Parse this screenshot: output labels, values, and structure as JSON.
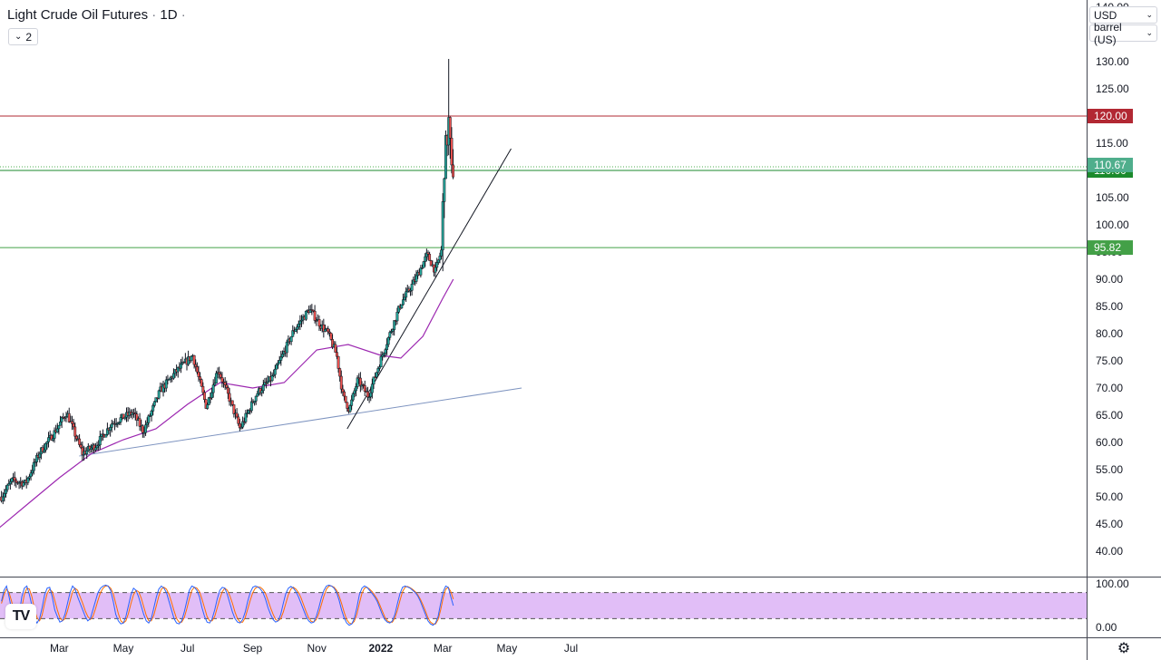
{
  "header": {
    "symbol": "Light Crude Oil Futures",
    "separator1": "·",
    "interval": "1D",
    "separator2": "·",
    "indicator_count": "2"
  },
  "scale_controls": {
    "currency": "USD",
    "unit": "barrel (US)"
  },
  "icons": {
    "indicator_toggle": "chevron-down-icon",
    "logo": "tradingview-logo-icon",
    "settings": "gear-icon"
  },
  "logo_text": "TV",
  "colors": {
    "up_candle": "#26a69a",
    "down_candle": "#ef5350",
    "wick": "#131722",
    "sma": "#9c27b0",
    "resistance": "#b22833",
    "support": "#1b8a2c",
    "support2": "#43a047",
    "last_price": "#4caf50",
    "trend_long": "#7e94c0",
    "trend_short": "#131722",
    "stoch_k": "#2962ff",
    "stoch_d": "#ff6d00",
    "stoch_band": "#e1bef7"
  },
  "chart_data": [
    {
      "type": "candlestick",
      "title": "Light Crude Oil Futures",
      "interval": "1D",
      "currency": "USD",
      "unit": "barrel (US)",
      "ylim": [
        37,
        140
      ],
      "y_ticks": [
        "140.00",
        "130.00",
        "125.00",
        "120.00",
        "115.00",
        "110.00",
        "105.00",
        "100.00",
        "95.00",
        "90.00",
        "85.00",
        "80.00",
        "75.00",
        "70.00",
        "65.00",
        "60.00",
        "55.00",
        "50.00",
        "45.00",
        "40.00"
      ],
      "x_ticks": [
        {
          "label": "Mar",
          "date": "2021-03-01"
        },
        {
          "label": "May",
          "date": "2021-05-01"
        },
        {
          "label": "Jul",
          "date": "2021-07-01"
        },
        {
          "label": "Sep",
          "date": "2021-09-01"
        },
        {
          "label": "Nov",
          "date": "2021-11-01"
        },
        {
          "label": "2022",
          "date": "2022-01-01",
          "bold": true
        },
        {
          "label": "Mar",
          "date": "2022-03-01"
        },
        {
          "label": "May",
          "date": "2022-05-01"
        },
        {
          "label": "Jul",
          "date": "2022-07-01"
        }
      ],
      "price_path": [
        {
          "date": "2021-01-05",
          "price": 50.0
        },
        {
          "date": "2021-01-15",
          "price": 53.0
        },
        {
          "date": "2021-01-28",
          "price": 52.5
        },
        {
          "date": "2021-02-10",
          "price": 58.0
        },
        {
          "date": "2021-02-25",
          "price": 62.0
        },
        {
          "date": "2021-03-08",
          "price": 65.5
        },
        {
          "date": "2021-03-23",
          "price": 58.0
        },
        {
          "date": "2021-04-05",
          "price": 59.5
        },
        {
          "date": "2021-04-20",
          "price": 63.5
        },
        {
          "date": "2021-05-10",
          "price": 65.5
        },
        {
          "date": "2021-05-20",
          "price": 62.0
        },
        {
          "date": "2021-06-05",
          "price": 69.5
        },
        {
          "date": "2021-06-20",
          "price": 73.0
        },
        {
          "date": "2021-07-06",
          "price": 76.0
        },
        {
          "date": "2021-07-19",
          "price": 66.5
        },
        {
          "date": "2021-07-30",
          "price": 73.5
        },
        {
          "date": "2021-08-10",
          "price": 68.0
        },
        {
          "date": "2021-08-20",
          "price": 62.5
        },
        {
          "date": "2021-09-05",
          "price": 69.0
        },
        {
          "date": "2021-09-20",
          "price": 72.0
        },
        {
          "date": "2021-10-10",
          "price": 80.5
        },
        {
          "date": "2021-10-25",
          "price": 84.5
        },
        {
          "date": "2021-11-05",
          "price": 81.5
        },
        {
          "date": "2021-11-12",
          "price": 80.0
        },
        {
          "date": "2021-11-20",
          "price": 76.0
        },
        {
          "date": "2021-11-26",
          "price": 68.5
        },
        {
          "date": "2021-12-02",
          "price": 66.0
        },
        {
          "date": "2021-12-10",
          "price": 71.5
        },
        {
          "date": "2021-12-20",
          "price": 68.5
        },
        {
          "date": "2022-01-05",
          "price": 77.5
        },
        {
          "date": "2022-01-20",
          "price": 85.5
        },
        {
          "date": "2022-02-03",
          "price": 90.0
        },
        {
          "date": "2022-02-14",
          "price": 94.5
        },
        {
          "date": "2022-02-22",
          "price": 91.5
        },
        {
          "date": "2022-02-28",
          "price": 95.5
        },
        {
          "date": "2022-03-02",
          "price": 110.5
        },
        {
          "date": "2022-03-07",
          "price": 119.5
        },
        {
          "date": "2022-03-09",
          "price": 108.5
        },
        {
          "date": "2022-03-11",
          "price": 110.67
        }
      ],
      "extreme_high": {
        "date": "2022-03-07",
        "price": 130.5
      },
      "sma": {
        "color": "#9c27b0",
        "points": [
          {
            "date": "2021-01-01",
            "price": 44.0
          },
          {
            "date": "2021-02-01",
            "price": 49.0
          },
          {
            "date": "2021-03-01",
            "price": 53.5
          },
          {
            "date": "2021-04-01",
            "price": 58.0
          },
          {
            "date": "2021-05-01",
            "price": 60.5
          },
          {
            "date": "2021-06-01",
            "price": 62.5
          },
          {
            "date": "2021-07-01",
            "price": 67.0
          },
          {
            "date": "2021-08-01",
            "price": 71.0
          },
          {
            "date": "2021-09-01",
            "price": 70.0
          },
          {
            "date": "2021-10-01",
            "price": 71.0
          },
          {
            "date": "2021-11-01",
            "price": 77.0
          },
          {
            "date": "2021-12-01",
            "price": 78.0
          },
          {
            "date": "2022-01-01",
            "price": 76.0
          },
          {
            "date": "2022-01-20",
            "price": 75.5
          },
          {
            "date": "2022-02-10",
            "price": 79.5
          },
          {
            "date": "2022-03-01",
            "price": 86.5
          },
          {
            "date": "2022-03-11",
            "price": 90.0
          }
        ]
      },
      "horizontal_levels": [
        {
          "price": 120.0,
          "label": "120.00",
          "color": "#b22833",
          "style": "solid"
        },
        {
          "price": 110.0,
          "label": "110.00",
          "color": "#1b8a2c",
          "style": "solid"
        },
        {
          "price": 95.82,
          "label": "95.82",
          "color": "#43a047",
          "style": "solid"
        }
      ],
      "last_price": {
        "price": 110.67,
        "label": "110.67",
        "color": "#4caf50",
        "style": "dotted"
      },
      "trend_lines": [
        {
          "from": {
            "date": "2021-03-20",
            "price": 57.5
          },
          "to": {
            "date": "2022-05-15",
            "price": 70.0
          },
          "color": "#7e94c0"
        },
        {
          "from": {
            "date": "2021-11-30",
            "price": 62.5
          },
          "to": {
            "date": "2022-05-05",
            "price": 114.0
          },
          "color": "#131722"
        }
      ]
    },
    {
      "type": "line",
      "indicator": "stochastic-rsi",
      "ylim": [
        0,
        100
      ],
      "y_ticks": [
        "100.00",
        "0.00"
      ],
      "band": [
        20,
        80
      ],
      "k_values": [
        60,
        85,
        95,
        70,
        40,
        20,
        10,
        30,
        70,
        90,
        95,
        75,
        50,
        20,
        10,
        20,
        45,
        75,
        90,
        92,
        70,
        40,
        25,
        12,
        15,
        30,
        55,
        80,
        95,
        88,
        70,
        55,
        40,
        25,
        15,
        20,
        40,
        60,
        80,
        90,
        95,
        97,
        95,
        85,
        60,
        30,
        15,
        8,
        10,
        25,
        50,
        75,
        90,
        85,
        70,
        50,
        30,
        15,
        10,
        20,
        45,
        70,
        88,
        95,
        90,
        80,
        60,
        40,
        20,
        10,
        8,
        15,
        35,
        60,
        85,
        95,
        92,
        85,
        70,
        45,
        25,
        12,
        10,
        20,
        40,
        65,
        85,
        92,
        90,
        75,
        55,
        35,
        20,
        12,
        10,
        18,
        35,
        60,
        80,
        92,
        95,
        93,
        88,
        80,
        65,
        45,
        30,
        18,
        12,
        15,
        30,
        55,
        78,
        90,
        94,
        90,
        82,
        70,
        55,
        40,
        25,
        15,
        10,
        12,
        25,
        45,
        68,
        85,
        95,
        97,
        95,
        90,
        80,
        62,
        40,
        22,
        10,
        5,
        8,
        20,
        45,
        75,
        90,
        95,
        92,
        85,
        78,
        70,
        60,
        45,
        30,
        18,
        12,
        10,
        15,
        30,
        55,
        78,
        92,
        95,
        93,
        90,
        85,
        80,
        72,
        60,
        45,
        30,
        15,
        8,
        5,
        10,
        25,
        55,
        82,
        95,
        92,
        70,
        50
      ],
      "d_values": [
        55,
        75,
        88,
        80,
        60,
        35,
        18,
        20,
        45,
        75,
        90,
        88,
        70,
        42,
        22,
        15,
        28,
        55,
        78,
        88,
        82,
        62,
        40,
        22,
        15,
        20,
        38,
        60,
        82,
        90,
        85,
        70,
        55,
        38,
        25,
        18,
        25,
        42,
        62,
        80,
        90,
        95,
        95,
        90,
        78,
        55,
        32,
        15,
        10,
        15,
        32,
        55,
        75,
        85,
        82,
        68,
        48,
        28,
        15,
        15,
        28,
        50,
        72,
        88,
        92,
        88,
        76,
        58,
        38,
        20,
        12,
        12,
        22,
        42,
        65,
        85,
        92,
        90,
        82,
        65,
        45,
        25,
        15,
        15,
        25,
        45,
        65,
        82,
        90,
        85,
        72,
        55,
        35,
        20,
        12,
        12,
        22,
        42,
        62,
        80,
        90,
        93,
        92,
        87,
        78,
        62,
        45,
        30,
        18,
        15,
        20,
        35,
        55,
        75,
        88,
        92,
        88,
        80,
        68,
        52,
        36,
        22,
        14,
        12,
        18,
        32,
        52,
        72,
        88,
        95,
        95,
        92,
        85,
        72,
        55,
        35,
        18,
        10,
        8,
        14,
        30,
        55,
        78,
        90,
        92,
        88,
        82,
        74,
        65,
        52,
        38,
        24,
        15,
        12,
        12,
        22,
        40,
        62,
        82,
        92,
        94,
        91,
        87,
        82,
        75,
        65,
        52,
        38,
        22,
        12,
        8,
        8,
        18,
        40,
        68,
        88,
        92,
        82,
        65
      ]
    }
  ]
}
